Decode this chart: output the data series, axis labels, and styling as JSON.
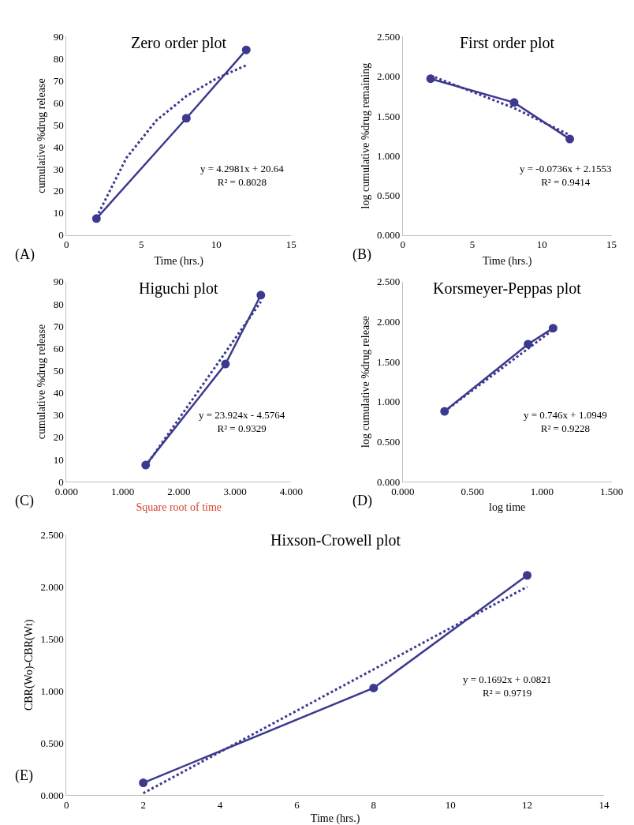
{
  "chart_data": [
    {
      "type": "line",
      "title": "Zero order plot",
      "xlabel": "Time (hrs.)",
      "ylabel": "cumulative %drug release",
      "annotations": [
        "y = 4.2981x + 20.64\nR² = 0.8028",
        "(A)"
      ],
      "xlim": [
        0,
        15
      ],
      "xticks": [
        0,
        5,
        10,
        15
      ],
      "ylim": [
        0,
        90
      ],
      "yticks": [
        0,
        10,
        20,
        30,
        40,
        50,
        60,
        70,
        80,
        90
      ],
      "grid": false,
      "series": [
        {
          "x": [
            2,
            8,
            12
          ],
          "values": [
            7.5,
            53,
            84
          ],
          "color": "#3c3a8e",
          "marker": "circle",
          "line_style": "solid"
        },
        {
          "x": [
            2,
            4,
            6,
            8,
            10,
            12
          ],
          "values": [
            8,
            35,
            52,
            63,
            71,
            77
          ],
          "color": "#3c3a8e",
          "marker": "none",
          "line_style": "dotted"
        }
      ]
    },
    {
      "type": "line",
      "title": "First order plot",
      "xlabel": "Time (hrs.)",
      "ylabel": "log cumulative %drug remaining",
      "annotations": [
        "y = -0.0736x + 2.1553\nR² = 0.9414",
        "(B)"
      ],
      "xlim": [
        0,
        15
      ],
      "xticks": [
        0,
        5,
        10,
        15
      ],
      "ylim": [
        0,
        2.5
      ],
      "yticks": [
        {
          "value": 0,
          "label": "0.000"
        },
        {
          "value": 0.5,
          "label": "0.500"
        },
        {
          "value": 1,
          "label": "1.000"
        },
        {
          "value": 1.5,
          "label": "1.500"
        },
        {
          "value": 2,
          "label": "2.000"
        },
        {
          "value": 2.5,
          "label": "2.500"
        }
      ],
      "grid": false,
      "series": [
        {
          "x": [
            2,
            8,
            12
          ],
          "values": [
            1.97,
            1.67,
            1.21
          ],
          "color": "#3c3a8e",
          "marker": "circle",
          "line_style": "solid"
        },
        {
          "x": [
            2,
            8,
            12
          ],
          "values": [
            2.01,
            1.6,
            1.26
          ],
          "color": "#3c3a8e",
          "marker": "none",
          "line_style": "dotted"
        }
      ]
    },
    {
      "type": "line",
      "title": "Higuchi plot",
      "xlabel": "Square root of time",
      "ylabel": "cumulative %drug release",
      "annotations": [
        "y = 23.924x - 4.5764\nR² = 0.9329",
        "(C)"
      ],
      "xlim": [
        0,
        4
      ],
      "xticks": [
        {
          "value": 0,
          "label": "0.000"
        },
        {
          "value": 1,
          "label": "1.000"
        },
        {
          "value": 2,
          "label": "2.000"
        },
        {
          "value": 3,
          "label": "3.000"
        },
        {
          "value": 4,
          "label": "4.000"
        }
      ],
      "ylim": [
        0,
        90
      ],
      "yticks": [
        0,
        10,
        20,
        30,
        40,
        50,
        60,
        70,
        80,
        90
      ],
      "grid": false,
      "series": [
        {
          "x": [
            1.41,
            2.83,
            3.46
          ],
          "values": [
            7.5,
            53,
            84
          ],
          "color": "#3c3a8e",
          "marker": "circle",
          "line_style": "solid"
        },
        {
          "x": [
            1.41,
            3.46
          ],
          "values": [
            7,
            81
          ],
          "color": "#3c3a8e",
          "marker": "none",
          "line_style": "dotted"
        }
      ]
    },
    {
      "type": "line",
      "title": "Korsmeyer-Peppas plot",
      "xlabel": "log time",
      "ylabel": "log cumulative %drug release",
      "annotations": [
        "y = 0.746x + 1.0949\nR² = 0.9228",
        "(D)"
      ],
      "xlim": [
        0,
        1.5
      ],
      "xticks": [
        {
          "value": 0,
          "label": "0.000"
        },
        {
          "value": 0.5,
          "label": "0.500"
        },
        {
          "value": 1,
          "label": "1.000"
        },
        {
          "value": 1.5,
          "label": "1.500"
        }
      ],
      "ylim": [
        0,
        2.5
      ],
      "yticks": [
        {
          "value": 0,
          "label": "0.000"
        },
        {
          "value": 0.5,
          "label": "0.500"
        },
        {
          "value": 1,
          "label": "1.000"
        },
        {
          "value": 1.5,
          "label": "1.500"
        },
        {
          "value": 2,
          "label": "2.000"
        },
        {
          "value": 2.5,
          "label": "2.500"
        }
      ],
      "grid": false,
      "series": [
        {
          "x": [
            0.3,
            0.9,
            1.08
          ],
          "values": [
            0.88,
            1.72,
            1.92
          ],
          "color": "#3c3a8e",
          "marker": "circle",
          "line_style": "solid"
        },
        {
          "x": [
            0.3,
            1.08
          ],
          "values": [
            0.88,
            1.9
          ],
          "color": "#3c3a8e",
          "marker": "none",
          "line_style": "dotted"
        }
      ]
    },
    {
      "type": "line",
      "title": "Hixson-Crowell plot",
      "xlabel": "Time (hrs.)",
      "ylabel": "CBR(Wo)-CBR(Wt)",
      "annotations": [
        "y = 0.1692x + 0.0821\nR² = 0.9719",
        "(E)"
      ],
      "xlim": [
        0,
        14
      ],
      "xticks": [
        0,
        2,
        4,
        6,
        8,
        10,
        12,
        14
      ],
      "ylim": [
        0,
        2.5
      ],
      "yticks": [
        {
          "value": 0,
          "label": "0.000"
        },
        {
          "value": 0.5,
          "label": "0.500"
        },
        {
          "value": 1,
          "label": "1.000"
        },
        {
          "value": 1.5,
          "label": "1.500"
        },
        {
          "value": 2,
          "label": "2.000"
        },
        {
          "value": 2.5,
          "label": "2.500"
        }
      ],
      "grid": false,
      "series": [
        {
          "x": [
            2,
            8,
            12
          ],
          "values": [
            0.12,
            1.03,
            2.11
          ],
          "color": "#3c3a8e",
          "marker": "circle",
          "line_style": "solid"
        },
        {
          "x": [
            2,
            12
          ],
          "values": [
            0.02,
            2.0
          ],
          "color": "#3c3a8e",
          "marker": "none",
          "line_style": "dotted"
        }
      ]
    }
  ]
}
